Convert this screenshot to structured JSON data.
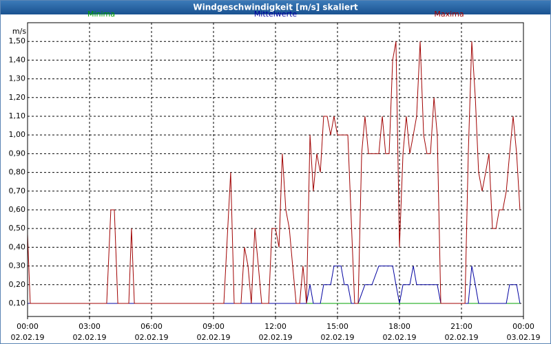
{
  "chart_data": {
    "type": "line",
    "title": "Windgeschwindigkeit [m/s] skaliert",
    "y_label": "m/s",
    "xlim": [
      0,
      24
    ],
    "ylim": [
      0.03,
      1.6
    ],
    "grid": true,
    "xticks": [
      {
        "value": 0,
        "label": "00:00",
        "date": "02.02.19"
      },
      {
        "value": 3,
        "label": "03:00",
        "date": "02.02.19"
      },
      {
        "value": 6,
        "label": "06:00",
        "date": "02.02.19"
      },
      {
        "value": 9,
        "label": "09:00",
        "date": "02.02.19"
      },
      {
        "value": 12,
        "label": "12:00",
        "date": "02.02.19"
      },
      {
        "value": 15,
        "label": "15:00",
        "date": "02.02.19"
      },
      {
        "value": 18,
        "label": "18:00",
        "date": "02.02.19"
      },
      {
        "value": 21,
        "label": "21:00",
        "date": "02.02.19"
      },
      {
        "value": 24,
        "label": "00:00",
        "date": "03.02.19"
      }
    ],
    "yticks": [
      {
        "value": 0.1,
        "label": "0,10"
      },
      {
        "value": 0.2,
        "label": "0,20"
      },
      {
        "value": 0.3,
        "label": "0,30"
      },
      {
        "value": 0.4,
        "label": "0,40"
      },
      {
        "value": 0.5,
        "label": "0,50"
      },
      {
        "value": 0.6,
        "label": "0,60"
      },
      {
        "value": 0.7,
        "label": "0,70"
      },
      {
        "value": 0.8,
        "label": "0,80"
      },
      {
        "value": 0.9,
        "label": "0,90"
      },
      {
        "value": 1.0,
        "label": "1,00"
      },
      {
        "value": 1.1,
        "label": "1,10"
      },
      {
        "value": 1.2,
        "label": "1,20"
      },
      {
        "value": 1.3,
        "label": "1,30"
      },
      {
        "value": 1.4,
        "label": "1,40"
      },
      {
        "value": 1.5,
        "label": "1,50"
      }
    ],
    "series": [
      {
        "name": "Minima",
        "color": "#00a000",
        "x": [
          0,
          23.83
        ],
        "values": [
          0.1,
          0.1
        ]
      },
      {
        "name": "Mittelwerte",
        "color": "#0000a0",
        "x": [
          0,
          13.5,
          13.67,
          13.83,
          14.17,
          14.33,
          14.67,
          14.83,
          15.17,
          15.33,
          15.5,
          15.67,
          16,
          16.33,
          16.67,
          17,
          17.67,
          17.83,
          18,
          18.17,
          18.5,
          18.67,
          18.83,
          19.83,
          20,
          21.33,
          21.5,
          21.67,
          21.83,
          23.17,
          23.33,
          23.67,
          23.83
        ],
        "values": [
          0.1,
          0.1,
          0.2,
          0.1,
          0.1,
          0.2,
          0.2,
          0.3,
          0.3,
          0.2,
          0.2,
          0.1,
          0.1,
          0.2,
          0.2,
          0.3,
          0.3,
          0.2,
          0.1,
          0.2,
          0.2,
          0.3,
          0.2,
          0.2,
          0.1,
          0.1,
          0.3,
          0.2,
          0.1,
          0.1,
          0.2,
          0.2,
          0.1
        ]
      },
      {
        "name": "Maxima",
        "color": "#a00000",
        "x": [
          0,
          0.13,
          3.83,
          4.03,
          4.2,
          4.37,
          4.9,
          5.03,
          5.17,
          9.5,
          9.83,
          10,
          10.33,
          10.5,
          10.67,
          10.83,
          11,
          11.17,
          11.33,
          11.67,
          11.83,
          12,
          12.17,
          12.33,
          12.5,
          12.67,
          12.83,
          13,
          13.17,
          13.33,
          13.5,
          13.67,
          13.83,
          14,
          14.17,
          14.33,
          14.5,
          14.67,
          14.83,
          15,
          15.5,
          15.83,
          16,
          16.17,
          16.33,
          16.5,
          17,
          17.17,
          17.33,
          17.5,
          17.67,
          17.83,
          18,
          18.17,
          18.33,
          18.5,
          18.67,
          18.83,
          19,
          19.17,
          19.33,
          19.5,
          19.67,
          19.83,
          20,
          21.17,
          21.33,
          21.5,
          21.67,
          21.83,
          22,
          22.17,
          22.33,
          22.5,
          22.67,
          22.83,
          23,
          23.17,
          23.33,
          23.5,
          23.67,
          23.83
        ],
        "values": [
          0.47,
          0.1,
          0.1,
          0.6,
          0.6,
          0.1,
          0.1,
          0.5,
          0.1,
          0.1,
          0.8,
          0.1,
          0.1,
          0.4,
          0.3,
          0.1,
          0.5,
          0.3,
          0.1,
          0.1,
          0.5,
          0.5,
          0.4,
          0.9,
          0.6,
          0.5,
          0.3,
          0.1,
          0.1,
          0.3,
          0.1,
          1.0,
          0.7,
          0.9,
          0.8,
          1.1,
          1.1,
          1.0,
          1.1,
          1.0,
          1.0,
          0.1,
          0.1,
          0.9,
          1.1,
          0.9,
          0.9,
          1.1,
          0.9,
          0.9,
          1.4,
          1.5,
          0.4,
          0.9,
          1.1,
          0.9,
          1.0,
          1.1,
          1.5,
          1.0,
          0.9,
          0.9,
          1.2,
          1.0,
          0.1,
          0.1,
          0.9,
          1.5,
          1.2,
          0.8,
          0.7,
          0.8,
          0.9,
          0.5,
          0.5,
          0.6,
          0.6,
          0.7,
          0.9,
          1.1,
          0.9,
          0.6
        ]
      }
    ]
  }
}
